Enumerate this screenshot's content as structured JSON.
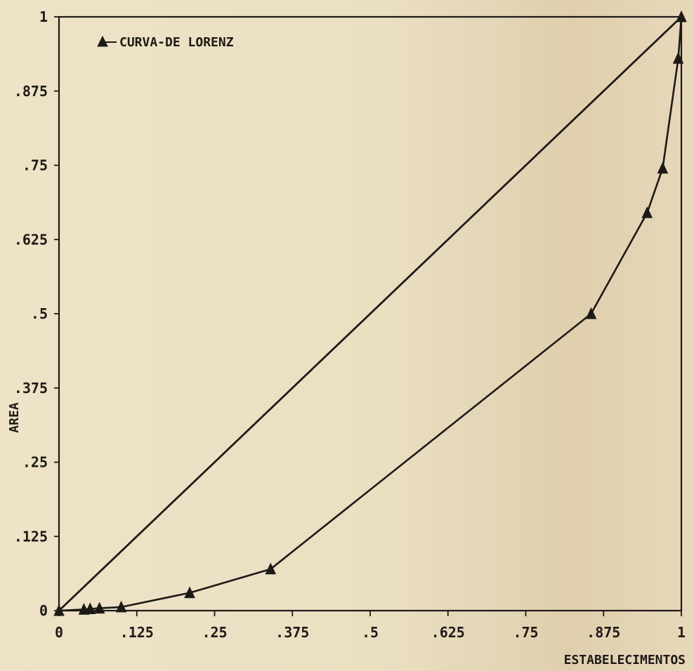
{
  "chart_data": {
    "type": "line",
    "title": "",
    "xlabel": "ESTABELECIMENTOS",
    "ylabel": "AREA",
    "xlim": [
      0,
      1
    ],
    "ylim": [
      0,
      1
    ],
    "x_ticks": [
      "0",
      ".125",
      ".25",
      ".375",
      ".5",
      ".625",
      ".75",
      ".875",
      "1"
    ],
    "y_ticks": [
      "0",
      ".125",
      ".25",
      ".375",
      ".5",
      ".625",
      ".75",
      ".875",
      "1"
    ],
    "grid": false,
    "legend_position": "top-left",
    "colors": {
      "line": "#1d1a16",
      "marker": "#1d1a16",
      "background": "#eadfc3"
    },
    "series": [
      {
        "name": "CURVA-DE LORENZ",
        "marker": "triangle",
        "x": [
          0,
          0.04,
          0.05,
          0.065,
          0.1,
          0.21,
          0.34,
          0.855,
          0.945,
          0.97,
          0.995,
          1.0
        ],
        "y": [
          0,
          0.002,
          0.003,
          0.004,
          0.006,
          0.03,
          0.07,
          0.5,
          0.67,
          0.745,
          0.93,
          1.0
        ]
      }
    ],
    "reference_line": {
      "x": [
        0,
        1
      ],
      "y": [
        0,
        1
      ]
    }
  }
}
